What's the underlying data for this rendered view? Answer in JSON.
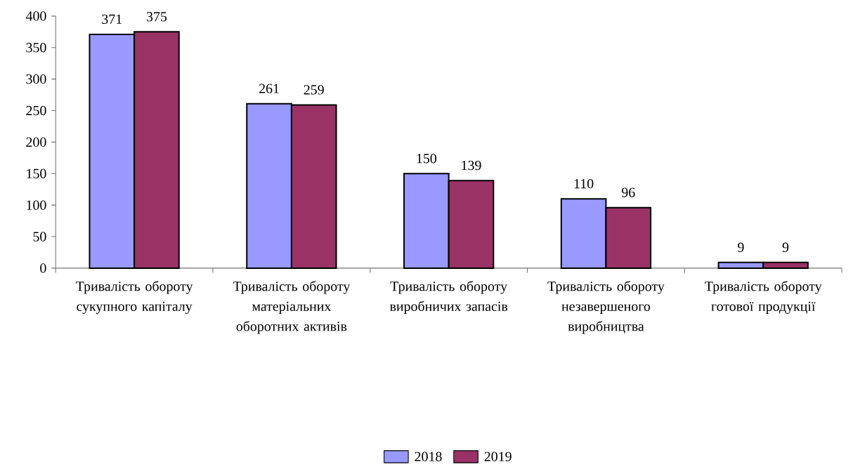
{
  "chart_data": {
    "type": "bar",
    "categories": [
      "Тривалість обороту сукупного капіталу",
      "Тривалість обороту матеріальних оборотних активів",
      "Тривалість обороту виробничих запасів",
      "Тривалість обороту незавершеного виробництва",
      "Тривалість обороту готової продукції"
    ],
    "series": [
      {
        "name": "2018",
        "color": "#9999ff",
        "values": [
          371,
          261,
          150,
          110,
          9
        ]
      },
      {
        "name": "2019",
        "color": "#993366",
        "values": [
          375,
          259,
          139,
          96,
          9
        ]
      }
    ],
    "ylim": [
      0,
      400
    ],
    "yticks": [
      0,
      50,
      100,
      150,
      200,
      250,
      300,
      350,
      400
    ],
    "data_labels": true,
    "legend": "bottom"
  }
}
